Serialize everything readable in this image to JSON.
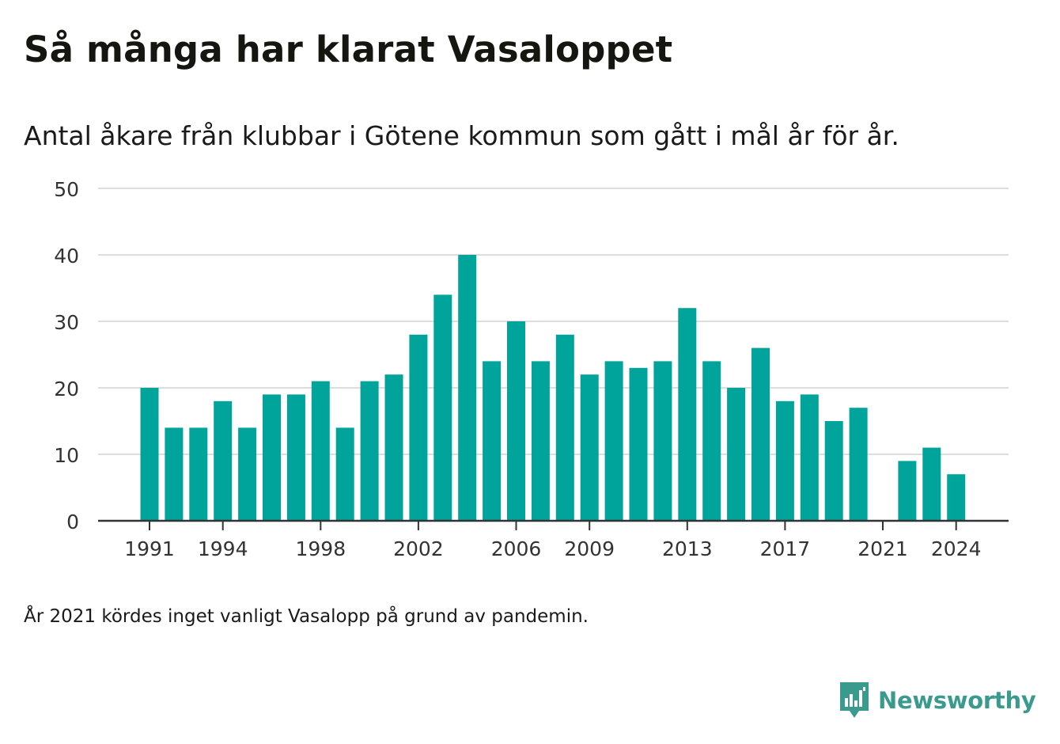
{
  "title": "Så många har klarat Vasaloppet",
  "subtitle": "Antal åkare från klubbar i Götene kommun som gått i mål år för år.",
  "footnote": "År 2021 kördes inget vanligt Vasalopp på grund av pandemin.",
  "brand": {
    "name": "Newsworthy",
    "logo_icon": "bar-chart-speech-bubble-icon",
    "color": "#3a9a8e"
  },
  "colors": {
    "bar": "#00a49a",
    "grid": "#dddddd",
    "axis": "#333333",
    "text": "#1a1a1a"
  },
  "chart_data": {
    "type": "bar",
    "x": [
      1991,
      1992,
      1993,
      1994,
      1995,
      1996,
      1997,
      1998,
      1999,
      2000,
      2001,
      2002,
      2003,
      2004,
      2005,
      2006,
      2007,
      2008,
      2009,
      2010,
      2011,
      2012,
      2013,
      2014,
      2015,
      2016,
      2017,
      2018,
      2019,
      2020,
      2021,
      2022,
      2023,
      2024
    ],
    "values": [
      20,
      14,
      14,
      18,
      14,
      19,
      19,
      21,
      14,
      21,
      22,
      28,
      34,
      40,
      24,
      30,
      24,
      28,
      22,
      24,
      23,
      24,
      32,
      24,
      20,
      26,
      18,
      19,
      15,
      17,
      null,
      9,
      11,
      7
    ],
    "x_ticks": [
      1991,
      1994,
      1998,
      2002,
      2006,
      2009,
      2013,
      2017,
      2021,
      2024
    ],
    "y_ticks": [
      0,
      10,
      20,
      30,
      40,
      50
    ],
    "ylim": [
      0,
      50
    ],
    "xlabel": "",
    "ylabel": "",
    "grid": true,
    "legend": "none"
  }
}
